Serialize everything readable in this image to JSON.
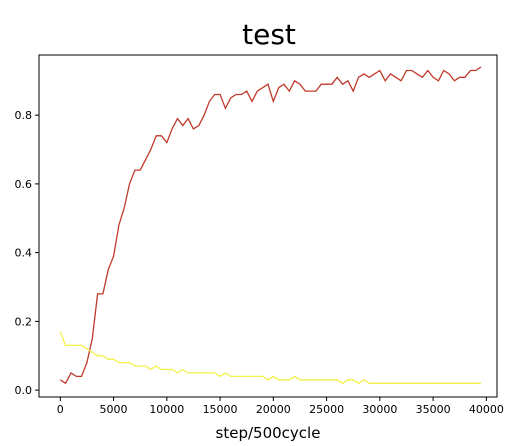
{
  "chart_data": {
    "type": "line",
    "title": "test",
    "xlabel": "step/500cycle",
    "ylabel": "",
    "xlim": [
      -2000,
      41000
    ],
    "ylim": [
      -0.02,
      0.975
    ],
    "xticks": [
      0,
      5000,
      10000,
      15000,
      20000,
      25000,
      30000,
      35000,
      40000
    ],
    "yticks": [
      0.0,
      0.2,
      0.4,
      0.6,
      0.8
    ],
    "xtick_labels": [
      "0",
      "5000",
      "10000",
      "15000",
      "20000",
      "25000",
      "30000",
      "35000",
      "40000"
    ],
    "ytick_labels": [
      "0.0",
      "0.2",
      "0.4",
      "0.6",
      "0.8"
    ],
    "grid": false,
    "series": [
      {
        "color": "#c0392b",
        "x": [
          0,
          500,
          1000,
          1500,
          2000,
          2500,
          3000,
          3500,
          4000,
          4500,
          5000,
          5500,
          6000,
          6500,
          7000,
          7500,
          8000,
          8500,
          9000,
          9500,
          10000,
          10500,
          11000,
          11500,
          12000,
          12500,
          13000,
          13500,
          14000,
          14500,
          15000,
          15500,
          16000,
          16500,
          17000,
          17500,
          18000,
          18500,
          19000,
          19500,
          20000,
          20500,
          21000,
          21500,
          22000,
          22500,
          23000,
          23500,
          24000,
          24500,
          25000,
          25500,
          26000,
          26500,
          27000,
          27500,
          28000,
          28500,
          29000,
          29500,
          30000,
          30500,
          31000,
          31500,
          32000,
          32500,
          33000,
          33500,
          34000,
          34500,
          35000,
          35500,
          36000,
          36500,
          37000,
          37500,
          38000,
          38500,
          39000,
          39500
        ],
        "values": [
          0.03,
          0.02,
          0.05,
          0.04,
          0.04,
          0.08,
          0.15,
          0.28,
          0.28,
          0.35,
          0.39,
          0.48,
          0.53,
          0.6,
          0.64,
          0.64,
          0.67,
          0.7,
          0.74,
          0.74,
          0.72,
          0.76,
          0.79,
          0.77,
          0.79,
          0.76,
          0.77,
          0.8,
          0.84,
          0.86,
          0.86,
          0.82,
          0.85,
          0.86,
          0.86,
          0.87,
          0.84,
          0.87,
          0.88,
          0.89,
          0.84,
          0.88,
          0.89,
          0.87,
          0.9,
          0.89,
          0.87,
          0.87,
          0.87,
          0.89,
          0.89,
          0.89,
          0.91,
          0.89,
          0.9,
          0.87,
          0.91,
          0.92,
          0.91,
          0.92,
          0.93,
          0.9,
          0.92,
          0.91,
          0.9,
          0.93,
          0.93,
          0.92,
          0.91,
          0.93,
          0.91,
          0.9,
          0.93,
          0.92,
          0.9,
          0.91,
          0.91,
          0.93,
          0.93,
          0.94
        ]
      },
      {
        "color": "#f4f04a",
        "x": [
          0,
          500,
          1000,
          1500,
          2000,
          2500,
          3000,
          3500,
          4000,
          4500,
          5000,
          5500,
          6000,
          6500,
          7000,
          7500,
          8000,
          8500,
          9000,
          9500,
          10000,
          10500,
          11000,
          11500,
          12000,
          12500,
          13000,
          13500,
          14000,
          14500,
          15000,
          15500,
          16000,
          16500,
          17000,
          17500,
          18000,
          18500,
          19000,
          19500,
          20000,
          20500,
          21000,
          21500,
          22000,
          22500,
          23000,
          23500,
          24000,
          24500,
          25000,
          25500,
          26000,
          26500,
          27000,
          27500,
          28000,
          28500,
          29000,
          29500,
          30000,
          30500,
          31000,
          31500,
          32000,
          32500,
          33000,
          33500,
          34000,
          34500,
          35000,
          35500,
          36000,
          36500,
          37000,
          37500,
          38000,
          38500,
          39000,
          39500
        ],
        "values": [
          0.17,
          0.13,
          0.13,
          0.13,
          0.13,
          0.12,
          0.11,
          0.1,
          0.1,
          0.09,
          0.09,
          0.08,
          0.08,
          0.08,
          0.07,
          0.07,
          0.07,
          0.06,
          0.07,
          0.06,
          0.06,
          0.06,
          0.05,
          0.06,
          0.05,
          0.05,
          0.05,
          0.05,
          0.05,
          0.05,
          0.04,
          0.05,
          0.04,
          0.04,
          0.04,
          0.04,
          0.04,
          0.04,
          0.04,
          0.03,
          0.04,
          0.03,
          0.03,
          0.03,
          0.04,
          0.03,
          0.03,
          0.03,
          0.03,
          0.03,
          0.03,
          0.03,
          0.03,
          0.02,
          0.03,
          0.03,
          0.02,
          0.03,
          0.02,
          0.02,
          0.02,
          0.02,
          0.02,
          0.02,
          0.02,
          0.02,
          0.02,
          0.02,
          0.02,
          0.02,
          0.02,
          0.02,
          0.02,
          0.02,
          0.02,
          0.02,
          0.02,
          0.02,
          0.02,
          0.02
        ]
      }
    ]
  }
}
